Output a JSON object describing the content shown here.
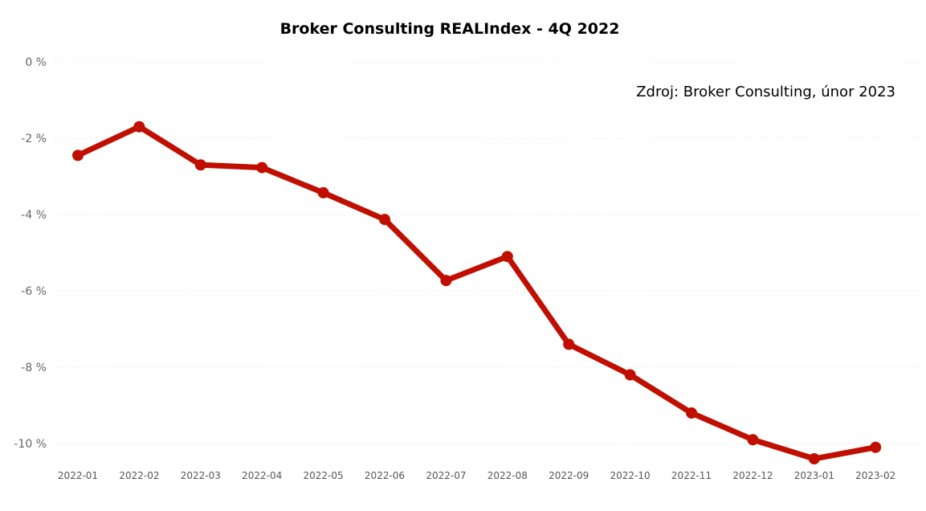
{
  "chart_data": {
    "type": "line",
    "title": "Broker Consulting REALIndex - 4Q 2022",
    "annotation": "Zdroj: Broker Consulting, únor 2023",
    "xlabel": "",
    "ylabel": "",
    "categories": [
      "2022-01",
      "2022-02",
      "2022-03",
      "2022-04",
      "2022-05",
      "2022-06",
      "2022-07",
      "2022-08",
      "2022-09",
      "2022-10",
      "2022-11",
      "2022-12",
      "2023-01",
      "2023-02"
    ],
    "series": [
      {
        "values": [
          -2.45,
          -1.7,
          -2.7,
          -2.77,
          -3.43,
          -4.13,
          -5.73,
          -5.1,
          -7.4,
          -8.2,
          -9.2,
          -9.9,
          -10.4,
          -10.1
        ]
      }
    ],
    "ylim": [
      -10,
      0
    ],
    "yticks": [
      0,
      -2,
      -4,
      -6,
      -8,
      -10
    ],
    "ytick_labels": [
      "0 %",
      "-2 %",
      "-4 %",
      "-6 %",
      "-8 %",
      "-10 %"
    ],
    "grid": true,
    "line_color": "#c00f00",
    "legend": "none"
  }
}
